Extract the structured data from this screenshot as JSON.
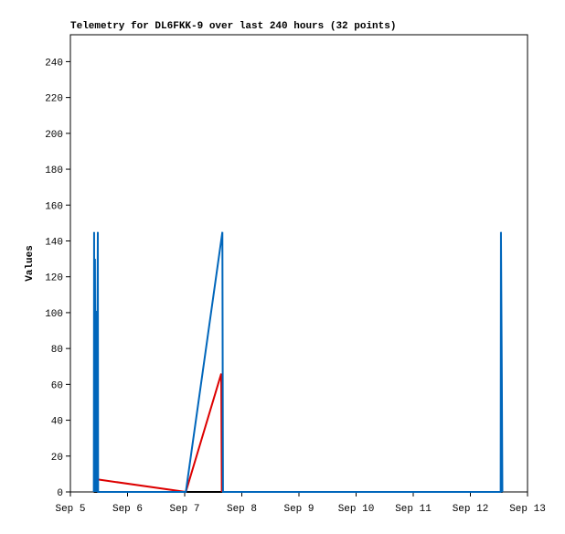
{
  "chart_data": {
    "type": "line",
    "title": "Telemetry for DL6FKK-9 over last 240 hours (32 points)",
    "y_label": "Values",
    "xlim": [
      5,
      13
    ],
    "xticks": [
      {
        "value": 5,
        "label": "Sep 5"
      },
      {
        "value": 6,
        "label": "Sep 6"
      },
      {
        "value": 7,
        "label": "Sep 7"
      },
      {
        "value": 8,
        "label": "Sep 8"
      },
      {
        "value": 9,
        "label": "Sep 9"
      },
      {
        "value": 10,
        "label": "Sep 10"
      },
      {
        "value": 11,
        "label": "Sep 11"
      },
      {
        "value": 12,
        "label": "Sep 12"
      },
      {
        "value": 13,
        "label": "Sep 13"
      }
    ],
    "ylim": [
      0,
      255
    ],
    "yticks": [
      0,
      20,
      40,
      60,
      80,
      100,
      120,
      140,
      160,
      180,
      200,
      220,
      240
    ],
    "grid": false,
    "series": [
      {
        "color": "#000000",
        "x": [
          5.41,
          12.56
        ],
        "values": [
          0,
          0
        ]
      },
      {
        "color": "#dd0000",
        "x": [
          5.43,
          5.45,
          5.47,
          7.02,
          7.64,
          7.65
        ],
        "values": [
          60,
          30,
          7,
          0,
          66,
          0
        ]
      },
      {
        "color": "#0066bb",
        "x": [
          5.41,
          5.415,
          5.42,
          5.43,
          5.44,
          5.45,
          5.46,
          5.48,
          5.485,
          7.02,
          7.66,
          7.67,
          12.53,
          12.535,
          12.55,
          12.56
        ],
        "values": [
          0,
          145,
          0,
          130,
          0,
          101,
          0,
          145,
          0,
          0,
          145,
          0,
          0,
          145,
          65,
          0
        ]
      }
    ]
  }
}
